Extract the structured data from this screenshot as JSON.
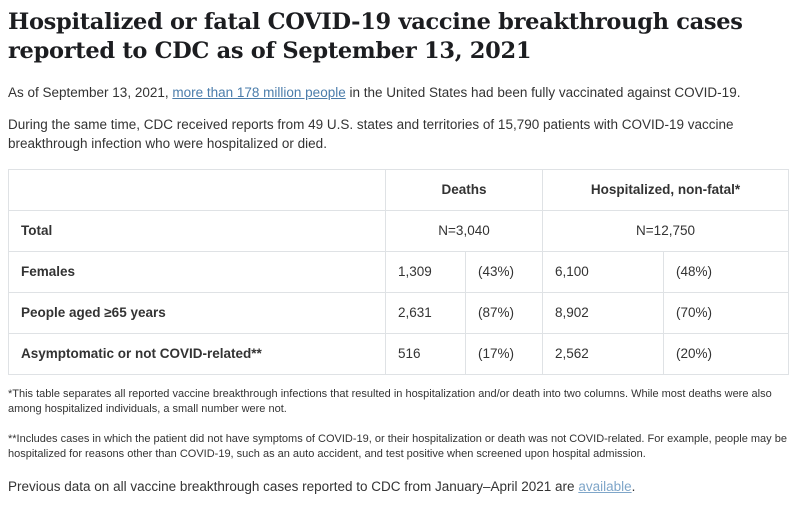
{
  "page": {
    "title_lines": [
      "Hospitalized or fatal COVID-19 vaccine breakthrough cases",
      "reported to CDC as of September 13, 2021"
    ],
    "intro": {
      "prefix": "As of September 13, 2021, ",
      "link_text": "more than 178 million people",
      "suffix": " in the United States had been fully vaccinated against COVID-19."
    },
    "para2": "During the same time, CDC received reports from 49 U.S. states and territories of 15,790 patients with COVID-19 vaccine breakthrough infection who were hospitalized or died.",
    "footnote1": "*This table separates all reported vaccine breakthrough infections that resulted in hospitalization and/or death into two columns.  While most deaths were also among hospitalized individuals, a small number were not.",
    "footnote2": "**Includes cases in which the patient did not have symptoms of COVID-19, or their hospitalization or death was not COVID-related. For example, people may be hospitalized for reasons other than COVID-19, such as an auto accident, and test positive when screened upon hospital admission.",
    "closing": {
      "prefix": "Previous data on all vaccine breakthrough cases reported to CDC from January–April 2021 are ",
      "link_text": "available",
      "suffix": "."
    }
  },
  "table": {
    "column_groups": {
      "deaths": "Deaths",
      "hospitalized": "Hospitalized, non-fatal*"
    },
    "total_row": {
      "label": "Total",
      "deaths_n": "N=3,040",
      "hospitalized_n": "N=12,750"
    },
    "rows": [
      {
        "label": "Females",
        "deaths_n": "1,309",
        "deaths_pct": "(43%)",
        "hosp_n": "6,100",
        "hosp_pct": "(48%)"
      },
      {
        "label": "People aged ≥65 years",
        "deaths_n": "2,631",
        "deaths_pct": "(87%)",
        "hosp_n": "8,902",
        "hosp_pct": "(70%)"
      },
      {
        "label": "Asymptomatic or not COVID-related**",
        "deaths_n": "516",
        "deaths_pct": "(17%)",
        "hosp_n": "2,562",
        "hosp_pct": "(20%)"
      }
    ]
  },
  "colors": {
    "heading_text": "#1c1d20",
    "body_text": "#333333",
    "link_blue": "#4b7dab",
    "link_blue_light": "#7fa6c9",
    "table_border": "#dfe2e5",
    "background": "#ffffff"
  }
}
